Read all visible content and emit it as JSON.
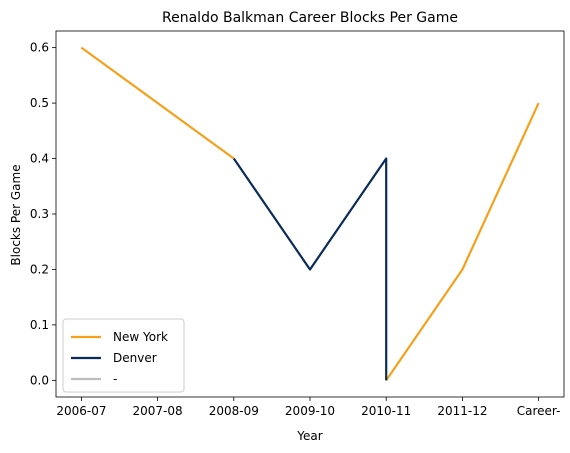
{
  "chart_data": {
    "type": "line",
    "title": "Renaldo Balkman Career Blocks Per Game",
    "xlabel": "Year",
    "ylabel": "Blocks Per Game",
    "categories": [
      "2006-07",
      "2007-08",
      "2008-09",
      "2009-10",
      "2010-11",
      "2011-12",
      "Career-"
    ],
    "ylim": [
      -0.03,
      0.63
    ],
    "yticks": [
      0.0,
      0.1,
      0.2,
      0.3,
      0.4,
      0.5,
      0.6
    ],
    "ytick_labels": [
      "0.0",
      "0.1",
      "0.2",
      "0.3",
      "0.4",
      "0.5",
      "0.6"
    ],
    "grid": false,
    "legend_position": "lower-left",
    "series": [
      {
        "name": "New York",
        "color": "#F5A11C",
        "segments": [
          [
            {
              "x": "2006-07",
              "y": 0.6
            },
            {
              "x": "2008-09",
              "y": 0.4
            }
          ],
          [
            {
              "x": "2010-11",
              "y": 0.0
            },
            {
              "x": "2011-12",
              "y": 0.2
            },
            {
              "x": "Career-",
              "y": 0.5
            }
          ]
        ]
      },
      {
        "name": "Denver",
        "color": "#0B2B5B",
        "segments": [
          [
            {
              "x": "2008-09",
              "y": 0.4
            },
            {
              "x": "2009-10",
              "y": 0.2
            },
            {
              "x": "2010-11",
              "y": 0.4
            },
            {
              "x": "2010-11",
              "y": 0.0
            }
          ]
        ]
      },
      {
        "name": "-",
        "color": "#BEBEBE",
        "segments": []
      }
    ]
  }
}
